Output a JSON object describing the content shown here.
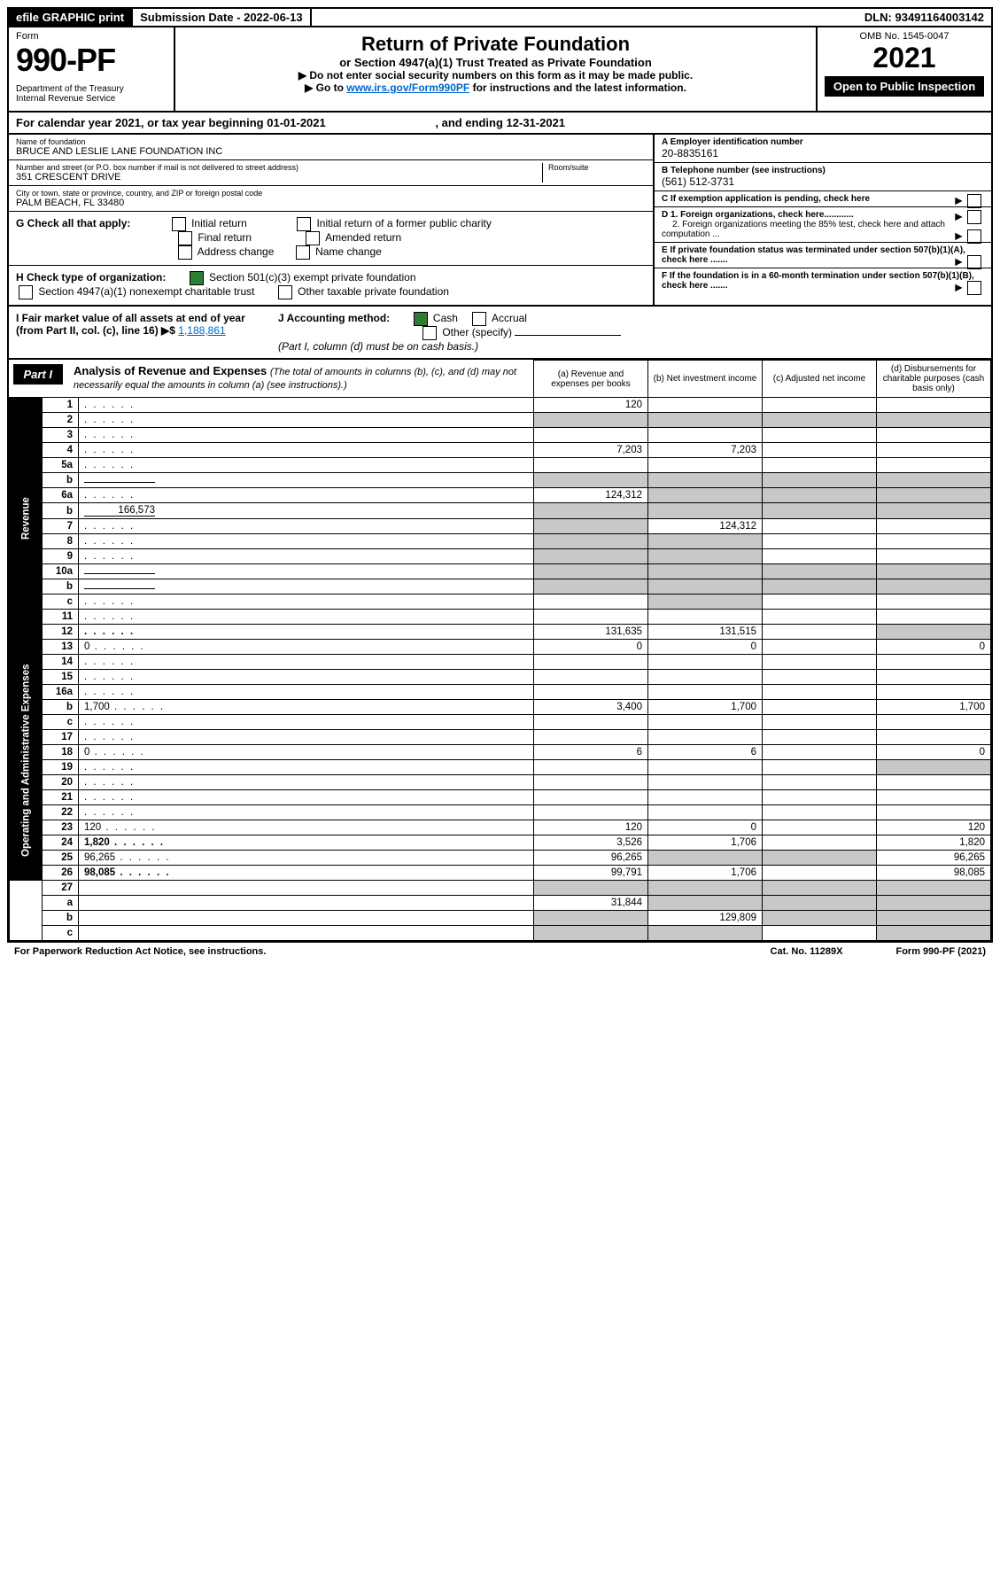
{
  "top": {
    "efile": "efile GRAPHIC print",
    "submission": "Submission Date - 2022-06-13",
    "dln": "DLN: 93491164003142"
  },
  "header": {
    "form_word": "Form",
    "form_num": "990-PF",
    "dept": "Department of the Treasury\nInternal Revenue Service",
    "title": "Return of Private Foundation",
    "subtitle": "or Section 4947(a)(1) Trust Treated as Private Foundation",
    "instr1": "▶ Do not enter social security numbers on this form as it may be made public.",
    "instr2_pre": "▶ Go to ",
    "instr2_link": "www.irs.gov/Form990PF",
    "instr2_post": " for instructions and the latest information.",
    "omb": "OMB No. 1545-0047",
    "year": "2021",
    "open": "Open to Public Inspection"
  },
  "calyear": {
    "pre": "For calendar year 2021, or tax year beginning ",
    "begin": "01-01-2021",
    "mid": " , and ending ",
    "end": "12-31-2021"
  },
  "info": {
    "name_lbl": "Name of foundation",
    "name": "BRUCE AND LESLIE LANE FOUNDATION INC",
    "addr_lbl": "Number and street (or P.O. box number if mail is not delivered to street address)",
    "addr": "351 CRESCENT DRIVE",
    "room_lbl": "Room/suite",
    "city_lbl": "City or town, state or province, country, and ZIP or foreign postal code",
    "city": "PALM BEACH, FL  33480",
    "a_lbl": "A Employer identification number",
    "a_val": "20-8835161",
    "b_lbl": "B Telephone number (see instructions)",
    "b_val": "(561) 512-3731",
    "c_lbl": "C If exemption application is pending, check here",
    "d1": "D 1. Foreign organizations, check here............",
    "d2": "2. Foreign organizations meeting the 85% test, check here and attach computation ...",
    "e": "E  If private foundation status was terminated under section 507(b)(1)(A), check here .......",
    "f": "F  If the foundation is in a 60-month termination under section 507(b)(1)(B), check here .......",
    "g_lbl": "G Check all that apply:",
    "g_opts": [
      "Initial return",
      "Initial return of a former public charity",
      "Final return",
      "Amended return",
      "Address change",
      "Name change"
    ],
    "h_lbl": "H Check type of organization:",
    "h_opts": [
      "Section 501(c)(3) exempt private foundation",
      "Section 4947(a)(1) nonexempt charitable trust",
      "Other taxable private foundation"
    ],
    "i_lbl": "I Fair market value of all assets at end of year (from Part II, col. (c), line 16)",
    "i_val": "1,188,861",
    "j_lbl": "J Accounting method:",
    "j_opts": [
      "Cash",
      "Accrual",
      "Other (specify)"
    ],
    "j_note": "(Part I, column (d) must be on cash basis.)"
  },
  "part1": {
    "label": "Part I",
    "title": "Analysis of Revenue and Expenses",
    "note": "(The total of amounts in columns (b), (c), and (d) may not necessarily equal the amounts in column (a) (see instructions).)",
    "col_a": "(a)   Revenue and expenses per books",
    "col_b": "(b)   Net investment income",
    "col_c": "(c)   Adjusted net income",
    "col_d": "(d)   Disbursements for charitable purposes (cash basis only)"
  },
  "side": {
    "revenue": "Revenue",
    "expenses": "Operating and Administrative Expenses"
  },
  "rows": [
    {
      "n": "1",
      "d": "",
      "a": "120",
      "b": "",
      "c": ""
    },
    {
      "n": "2",
      "d": "",
      "a": "",
      "b": "",
      "c": "",
      "shadeAll": true
    },
    {
      "n": "3",
      "d": "",
      "a": "",
      "b": "",
      "c": ""
    },
    {
      "n": "4",
      "d": "",
      "a": "7,203",
      "b": "7,203",
      "c": ""
    },
    {
      "n": "5a",
      "d": "",
      "a": "",
      "b": "",
      "c": ""
    },
    {
      "n": "b",
      "d": "",
      "a": "",
      "b": "",
      "c": "",
      "shadeAll": true,
      "inline": true
    },
    {
      "n": "6a",
      "d": "",
      "a": "124,312",
      "b": "",
      "c": "",
      "shadeBCD": true
    },
    {
      "n": "b",
      "d": "",
      "inline_val": "166,573",
      "a": "",
      "b": "",
      "c": "",
      "shadeAll": true
    },
    {
      "n": "7",
      "d": "",
      "a": "",
      "b": "124,312",
      "c": "",
      "shadeA": true
    },
    {
      "n": "8",
      "d": "",
      "a": "",
      "b": "",
      "c": "",
      "shadeAB": true
    },
    {
      "n": "9",
      "d": "",
      "a": "",
      "b": "",
      "c": "",
      "shadeAB": true
    },
    {
      "n": "10a",
      "d": "",
      "a": "",
      "b": "",
      "c": "",
      "shadeAll": true,
      "inline": true
    },
    {
      "n": "b",
      "d": "",
      "a": "",
      "b": "",
      "c": "",
      "shadeAll": true,
      "inline": true
    },
    {
      "n": "c",
      "d": "",
      "a": "",
      "b": "",
      "c": "",
      "shadeB": true
    },
    {
      "n": "11",
      "d": "",
      "a": "",
      "b": "",
      "c": ""
    },
    {
      "n": "12",
      "d": "",
      "a": "131,635",
      "b": "131,515",
      "c": "",
      "bold": true,
      "shadeD": true
    }
  ],
  "rows2": [
    {
      "n": "13",
      "d": "0",
      "a": "0",
      "b": "0",
      "c": ""
    },
    {
      "n": "14",
      "d": "",
      "a": "",
      "b": "",
      "c": ""
    },
    {
      "n": "15",
      "d": "",
      "a": "",
      "b": "",
      "c": ""
    },
    {
      "n": "16a",
      "d": "",
      "a": "",
      "b": "",
      "c": ""
    },
    {
      "n": "b",
      "d": "1,700",
      "a": "3,400",
      "b": "1,700",
      "c": ""
    },
    {
      "n": "c",
      "d": "",
      "a": "",
      "b": "",
      "c": ""
    },
    {
      "n": "17",
      "d": "",
      "a": "",
      "b": "",
      "c": ""
    },
    {
      "n": "18",
      "d": "0",
      "a": "6",
      "b": "6",
      "c": ""
    },
    {
      "n": "19",
      "d": "",
      "a": "",
      "b": "",
      "c": "",
      "shadeD": true
    },
    {
      "n": "20",
      "d": "",
      "a": "",
      "b": "",
      "c": ""
    },
    {
      "n": "21",
      "d": "",
      "a": "",
      "b": "",
      "c": ""
    },
    {
      "n": "22",
      "d": "",
      "a": "",
      "b": "",
      "c": ""
    },
    {
      "n": "23",
      "d": "120",
      "a": "120",
      "b": "0",
      "c": ""
    },
    {
      "n": "24",
      "d": "1,820",
      "a": "3,526",
      "b": "1,706",
      "c": "",
      "bold": true
    },
    {
      "n": "25",
      "d": "96,265",
      "a": "96,265",
      "b": "",
      "c": "",
      "shadeBC": true
    },
    {
      "n": "26",
      "d": "98,085",
      "a": "99,791",
      "b": "1,706",
      "c": "",
      "bold": true
    }
  ],
  "rows3": [
    {
      "n": "27",
      "d": "",
      "a": "",
      "b": "",
      "c": "",
      "shadeAll": true
    },
    {
      "n": "a",
      "d": "",
      "a": "31,844",
      "b": "",
      "c": "",
      "bold": true,
      "shadeBCD": true
    },
    {
      "n": "b",
      "d": "",
      "a": "",
      "b": "129,809",
      "c": "",
      "bold": true,
      "shadeACD": true
    },
    {
      "n": "c",
      "d": "",
      "a": "",
      "b": "",
      "c": "",
      "bold": true,
      "shadeABD": true
    }
  ],
  "footer": {
    "left": "For Paperwork Reduction Act Notice, see instructions.",
    "mid": "Cat. No. 11289X",
    "right": "Form 990-PF (2021)"
  },
  "colors": {
    "shade": "#c8c8c8",
    "link": "#0066cc",
    "check": "#2e7d32"
  }
}
